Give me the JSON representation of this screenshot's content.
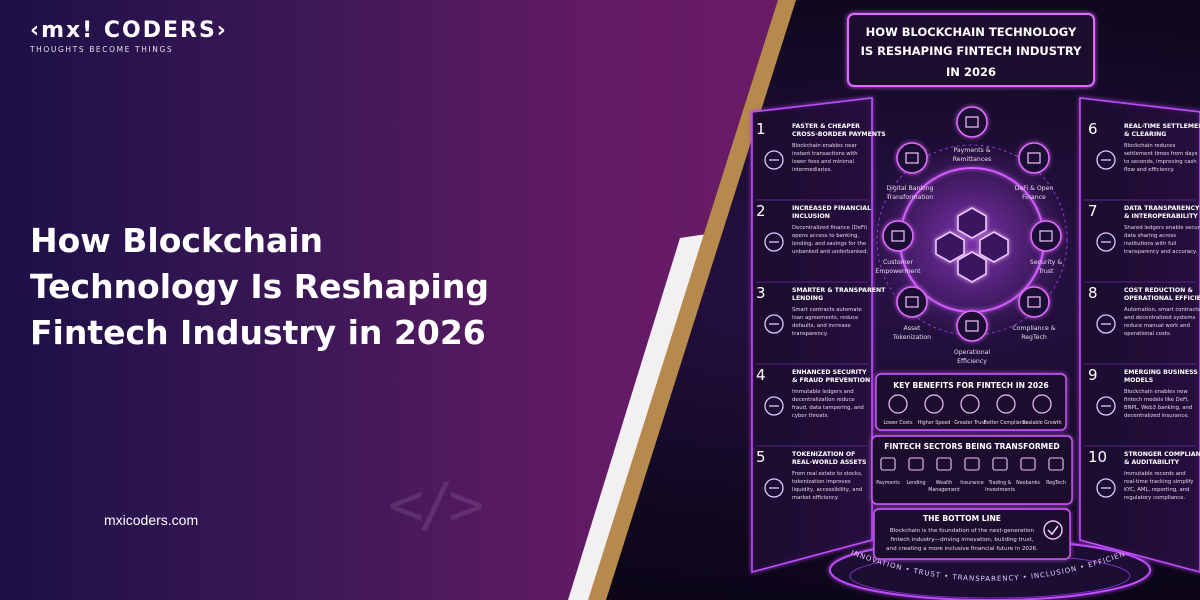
{
  "brand": {
    "logo": "‹mx! CODERS›",
    "tagline": "THOUGHTS BECOME THINGS",
    "website": "mxicoders.com"
  },
  "headline": {
    "line1": "How Blockchain",
    "line2": "Technology Is Reshaping",
    "line3": "Fintech Industry in 2026"
  },
  "infographic": {
    "title_line1": "HOW BLOCKCHAIN TECHNOLOGY",
    "title_line2": "IS RESHAPING FINTECH INDUSTRY",
    "title_line3": "IN 2026",
    "left_panels": [
      {
        "num": "1",
        "title1": "FASTER & CHEAPER",
        "title2": "CROSS-BORDER PAYMENTS",
        "b1": "Blockchain enables near",
        "b2": "instant transactions with",
        "b3": "lower fees and minimal",
        "b4": "intermediaries.",
        "icon": "globe-icon"
      },
      {
        "num": "2",
        "title1": "INCREASED FINANCIAL",
        "title2": "INCLUSION",
        "b1": "Decentralized finance (DeFi)",
        "b2": "opens access to banking,",
        "b3": "lending, and savings for the",
        "b4": "unbanked and underbanked.",
        "icon": "people-icon"
      },
      {
        "num": "3",
        "title1": "SMARTER & TRANSPARENT",
        "title2": "LENDING",
        "b1": "Smart contracts automate",
        "b2": "loan agreements, reduce",
        "b3": "defaults, and increase",
        "b4": "transparency.",
        "icon": "contract-icon"
      },
      {
        "num": "4",
        "title1": "ENHANCED SECURITY",
        "title2": "& FRAUD PREVENTION",
        "b1": "Immutable ledgers and",
        "b2": "decentralization reduce",
        "b3": "fraud, data tampering, and",
        "b4": "cyber threats.",
        "icon": "lock-icon"
      },
      {
        "num": "5",
        "title1": "TOKENIZATION OF",
        "title2": "REAL-WORLD ASSETS",
        "b1": "From real estate to stocks,",
        "b2": "tokenization improves",
        "b3": "liquidity, accessibility, and",
        "b4": "market efficiency.",
        "icon": "house-token-icon"
      }
    ],
    "right_panels": [
      {
        "num": "6",
        "title1": "REAL-TIME SETTLEMENTS",
        "title2": "& CLEARING",
        "b1": "Blockchain reduces",
        "b2": "settlement times from days",
        "b3": "to seconds, improving cash",
        "b4": "flow and efficiency.",
        "icon": "clock-icon"
      },
      {
        "num": "7",
        "title1": "DATA TRANSPARENCY",
        "title2": "& INTEROPERABILITY",
        "b1": "Shared ledgers enable secure",
        "b2": "data sharing across",
        "b3": "institutions with full",
        "b4": "transparency and accuracy.",
        "icon": "network-icon"
      },
      {
        "num": "8",
        "title1": "COST REDUCTION &",
        "title2": "OPERATIONAL EFFICIENCY",
        "b1": "Automation, smart contracts,",
        "b2": "and decentralized systems",
        "b3": "reduce manual work and",
        "b4": "operational costs.",
        "icon": "gear-icon"
      },
      {
        "num": "9",
        "title1": "EMERGING BUSINESS",
        "title2": "MODELS",
        "b1": "Blockchain enables new",
        "b2": "fintech models like DeFi,",
        "b3": "BNPL, Web3 banking, and",
        "b4": "decentralized insurance.",
        "icon": "rocket-icon"
      },
      {
        "num": "10",
        "title1": "STRONGER COMPLIANCE",
        "title2": "& AUDITABILITY",
        "b1": "Immutable records and",
        "b2": "real-time tracking simplify",
        "b3": "KYC, AML, reporting, and",
        "b4": "regulatory compliance.",
        "icon": "checklist-icon"
      }
    ],
    "hub_labels": {
      "payments1": "Payments &",
      "payments2": "Remittances",
      "digital1": "Digital Banking",
      "digital2": "Transformation",
      "defi1": "DeFi & Open",
      "defi2": "Finance",
      "customer1": "Customer",
      "customer2": "Empowerment",
      "security1": "Security &",
      "security2": "Trust",
      "asset1": "Asset",
      "asset2": "Tokenization",
      "compliance1": "Compliance &",
      "compliance2": "RegTech",
      "operational1": "Operational",
      "operational2": "Efficiency"
    },
    "benefits": {
      "title": "KEY BENEFITS FOR FINTECH IN 2026",
      "items": [
        "Lower Costs",
        "Higher Speed",
        "Greater Trust",
        "Better Compliance",
        "Scalable Growth"
      ]
    },
    "sectors": {
      "title": "FINTECH SECTORS BEING TRANSFORMED",
      "items": [
        {
          "l1": "Payments",
          "l2": ""
        },
        {
          "l1": "Lending",
          "l2": ""
        },
        {
          "l1": "Wealth",
          "l2": "Management"
        },
        {
          "l1": "Insurance",
          "l2": ""
        },
        {
          "l1": "Trading &",
          "l2": "Investments"
        },
        {
          "l1": "Neobanks",
          "l2": ""
        },
        {
          "l1": "RegTech",
          "l2": ""
        }
      ]
    },
    "bottom_line": {
      "title": "THE BOTTOM LINE",
      "l1": "Blockchain is the foundation of the next-generation",
      "l2": "fintech industry—driving innovation, building trust,",
      "l3": "and creating a more inclusive financial future in 2026."
    },
    "ring_text": "INNOVATION • TRUST • TRANSPARENCY • INCLUSION • EFFICIENCY • GROWTH • BLOCKCHAIN"
  },
  "colors": {
    "neon_purple": "#c04cff",
    "neon_pink": "#ff5ad6",
    "gold": "#b58a4c",
    "left_gradient_start": "#1c1046",
    "left_gradient_end": "#6a1c66"
  }
}
